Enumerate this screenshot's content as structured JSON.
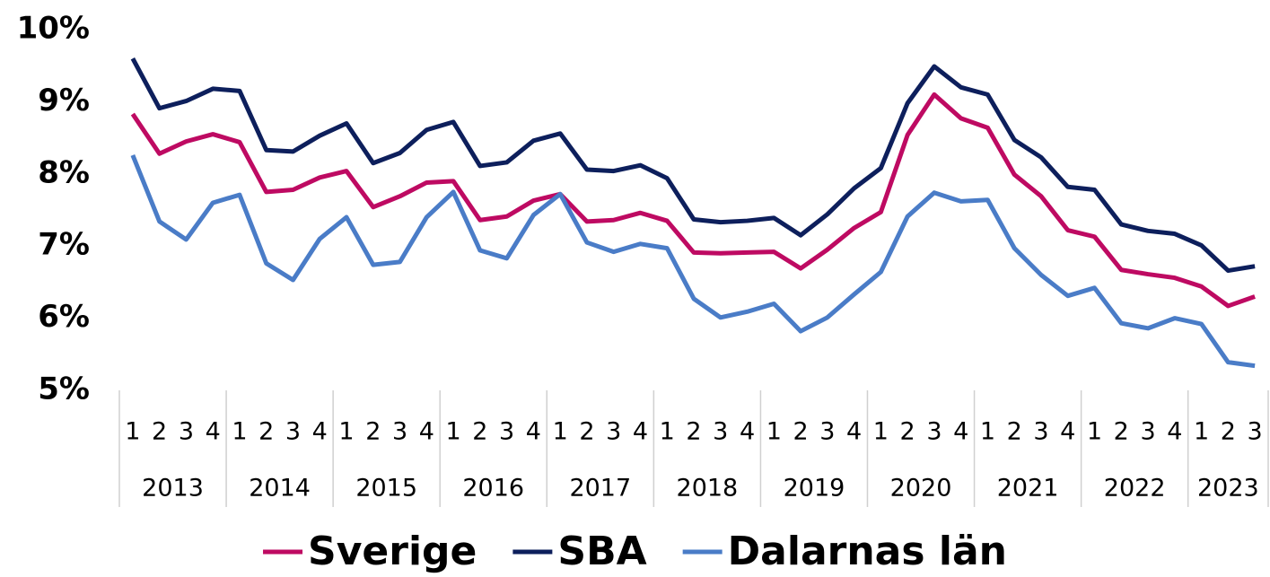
{
  "chart_data": {
    "type": "line",
    "categories": [
      "1",
      "2",
      "3",
      "4",
      "1",
      "2",
      "3",
      "4",
      "1",
      "2",
      "3",
      "4",
      "1",
      "2",
      "3",
      "4",
      "1",
      "2",
      "3",
      "4",
      "1",
      "2",
      "3",
      "4",
      "1",
      "2",
      "3",
      "4",
      "1",
      "2",
      "3",
      "4",
      "1",
      "2",
      "3",
      "4",
      "1",
      "2",
      "3",
      "4",
      "1",
      "2",
      "3"
    ],
    "category_groups": [
      {
        "label": "2013",
        "count": 4
      },
      {
        "label": "2014",
        "count": 4
      },
      {
        "label": "2015",
        "count": 4
      },
      {
        "label": "2016",
        "count": 4
      },
      {
        "label": "2017",
        "count": 4
      },
      {
        "label": "2018",
        "count": 4
      },
      {
        "label": "2019",
        "count": 4
      },
      {
        "label": "2020",
        "count": 4
      },
      {
        "label": "2021",
        "count": 4
      },
      {
        "label": "2022",
        "count": 4
      },
      {
        "label": "2023",
        "count": 3
      }
    ],
    "series": [
      {
        "name": "Sverige",
        "color": "#be0a62",
        "values": [
          8.83,
          8.28,
          8.45,
          8.55,
          8.44,
          7.75,
          7.78,
          7.95,
          8.04,
          7.54,
          7.69,
          7.88,
          7.9,
          7.36,
          7.41,
          7.63,
          7.72,
          7.34,
          7.36,
          7.46,
          7.35,
          6.91,
          6.9,
          6.91,
          6.92,
          6.69,
          6.95,
          7.25,
          7.47,
          8.54,
          9.1,
          8.77,
          8.64,
          7.99,
          7.69,
          7.22,
          7.13,
          6.67,
          6.61,
          6.56,
          6.44,
          6.17,
          6.3
        ]
      },
      {
        "name": "SBA",
        "color": "#0d1f5c",
        "values": [
          9.6,
          8.91,
          9.01,
          9.18,
          9.15,
          8.33,
          8.31,
          8.53,
          8.7,
          8.15,
          8.29,
          8.61,
          8.72,
          8.11,
          8.16,
          8.46,
          8.56,
          8.06,
          8.04,
          8.12,
          7.94,
          7.37,
          7.33,
          7.35,
          7.39,
          7.15,
          7.44,
          7.8,
          8.08,
          8.98,
          9.49,
          9.2,
          9.1,
          8.47,
          8.23,
          7.82,
          7.78,
          7.3,
          7.21,
          7.17,
          7.01,
          6.66,
          6.72
        ]
      },
      {
        "name": "Dalarnas län",
        "color": "#4a7cc7",
        "values": [
          8.26,
          7.34,
          7.09,
          7.6,
          7.71,
          6.76,
          6.53,
          7.1,
          7.4,
          6.74,
          6.78,
          7.4,
          7.75,
          6.94,
          6.83,
          7.43,
          7.72,
          7.05,
          6.92,
          7.03,
          6.97,
          6.27,
          6.01,
          6.09,
          6.2,
          5.82,
          6.01,
          6.33,
          6.64,
          7.41,
          7.74,
          7.62,
          7.64,
          6.97,
          6.6,
          6.31,
          6.42,
          5.93,
          5.86,
          6.0,
          5.92,
          5.39,
          5.34
        ]
      }
    ],
    "ylim": [
      5,
      10
    ],
    "yticks": [
      {
        "value": 5,
        "label": "5%"
      },
      {
        "value": 6,
        "label": "6%"
      },
      {
        "value": 7,
        "label": "7%"
      },
      {
        "value": 8,
        "label": "8%"
      },
      {
        "value": 9,
        "label": "9%"
      },
      {
        "value": 10,
        "label": "10%"
      }
    ],
    "legend": "bottom"
  }
}
